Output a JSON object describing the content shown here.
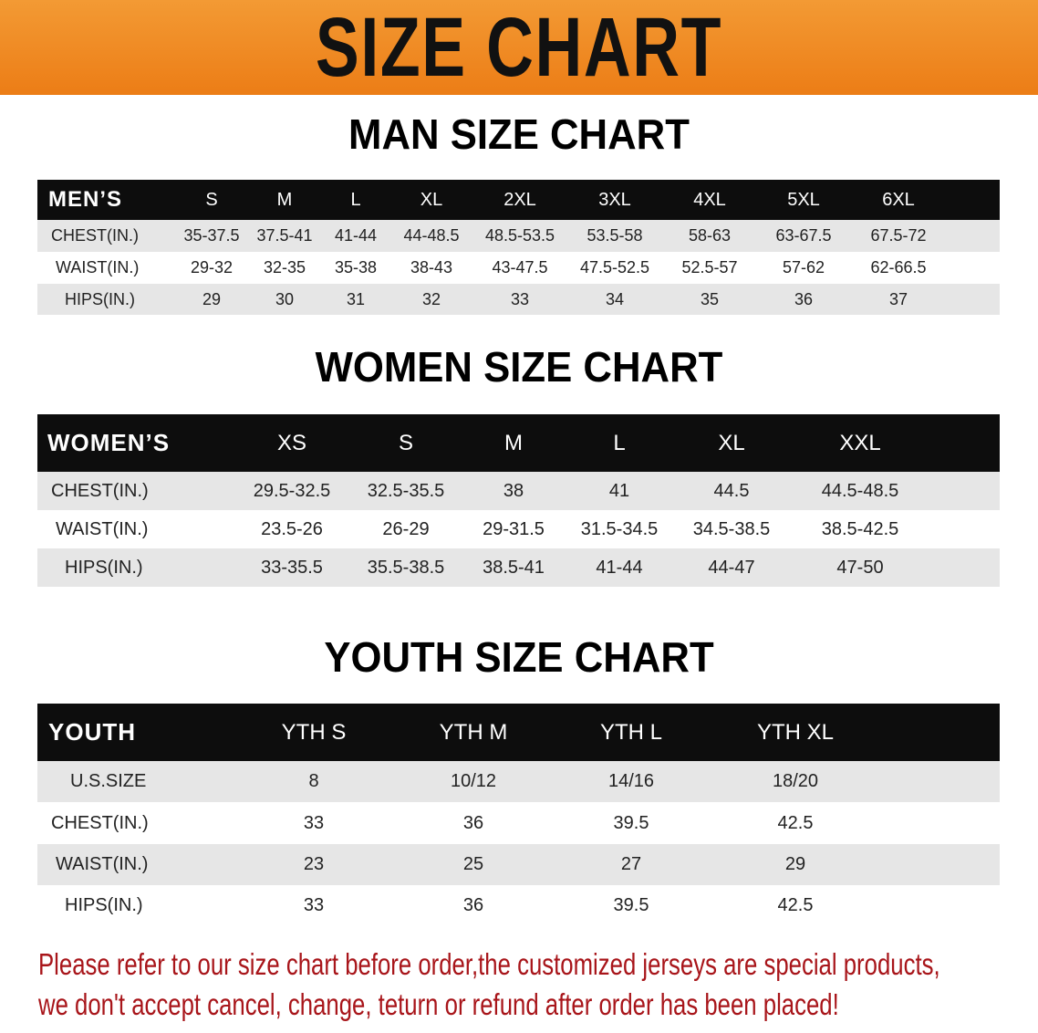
{
  "banner": {
    "title": "SIZE CHART",
    "color": "#ee8520"
  },
  "men": {
    "title": "MAN SIZE CHART",
    "header": [
      "MEN’S",
      "S",
      "M",
      "L",
      "XL",
      "2XL",
      "3XL",
      "4XL",
      "5XL",
      "6XL"
    ],
    "rows": [
      [
        "CHEST(IN.)",
        "35-37.5",
        "37.5-41",
        "41-44",
        "44-48.5",
        "48.5-53.5",
        "53.5-58",
        "58-63",
        "63-67.5",
        "67.5-72"
      ],
      [
        "WAIST(IN.)",
        "29-32",
        "32-35",
        "35-38",
        "38-43",
        "43-47.5",
        "47.5-52.5",
        "52.5-57",
        "57-62",
        "62-66.5"
      ],
      [
        "HIPS(IN.)",
        "29",
        "30",
        "31",
        "32",
        "33",
        "34",
        "35",
        "36",
        "37"
      ]
    ]
  },
  "women": {
    "title": "WOMEN SIZE CHART",
    "header": [
      "WOMEN’S",
      "XS",
      "S",
      "M",
      "L",
      "XL",
      "XXL"
    ],
    "rows": [
      [
        "CHEST(IN.)",
        "29.5-32.5",
        "32.5-35.5",
        "38",
        "41",
        "44.5",
        "44.5-48.5"
      ],
      [
        "WAIST(IN.)",
        "23.5-26",
        "26-29",
        "29-31.5",
        "31.5-34.5",
        "34.5-38.5",
        "38.5-42.5"
      ],
      [
        "HIPS(IN.)",
        "33-35.5",
        "35.5-38.5",
        "38.5-41",
        "41-44",
        "44-47",
        "47-50"
      ]
    ]
  },
  "youth": {
    "title": "YOUTH SIZE CHART",
    "header": [
      "YOUTH",
      "YTH S",
      "YTH M",
      "YTH L",
      "YTH XL"
    ],
    "rows": [
      [
        "U.S.SIZE",
        "8",
        "10/12",
        "14/16",
        "18/20"
      ],
      [
        "CHEST(IN.)",
        "33",
        "36",
        "39.5",
        "42.5"
      ],
      [
        "WAIST(IN.)",
        "23",
        "25",
        "27",
        "29"
      ],
      [
        "HIPS(IN.)",
        "33",
        "36",
        "39.5",
        "42.5"
      ]
    ]
  },
  "notice": {
    "line1": "Please refer to our size chart before order,the customized jerseys are special products,",
    "line2": "we don't accept cancel, change, teturn or refund after order has been placed!",
    "color": "#a8151a"
  }
}
